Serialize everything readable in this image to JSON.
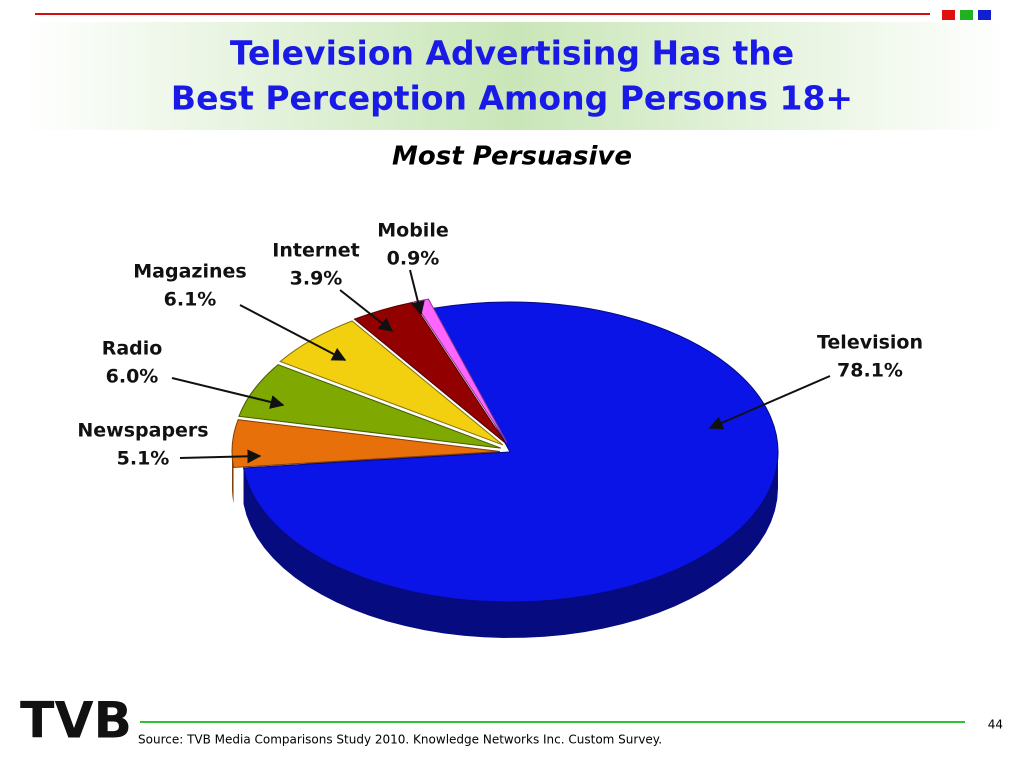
{
  "chart_data": {
    "type": "pie",
    "title": [
      "Television Advertising Has the",
      "Best Perception Among Persons 18+"
    ],
    "subtitle": "Most  Persuasive",
    "categories": [
      "Television",
      "Newspapers",
      "Radio",
      "Magazines",
      "Internet",
      "Mobile"
    ],
    "values": [
      78.1,
      5.1,
      6.0,
      6.1,
      3.9,
      0.9
    ],
    "value_labels": [
      "78.1%",
      "5.1%",
      "6.0%",
      "6.1%",
      "3.9%",
      "0.9%"
    ],
    "colors": [
      "#0a14e6",
      "#e8700a",
      "#7fa800",
      "#f2d010",
      "#920000",
      "#ff66ff"
    ]
  },
  "footer": {
    "source": "Source: TVB Media Comparisons Study 2010.  Knowledge Networks Inc. Custom Survey.",
    "page": "44",
    "logo": "TVB"
  }
}
